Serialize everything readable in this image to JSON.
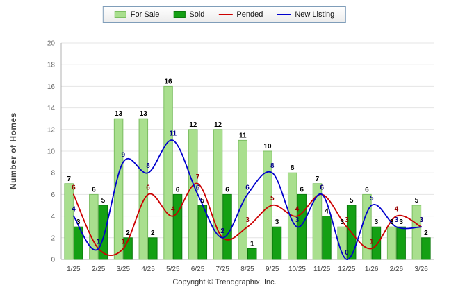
{
  "footer": {
    "copyright": "Copyright © Trendgraphix, Inc."
  },
  "chart_data": {
    "type": "bar",
    "subtype": "grouped-bars-with-overlay-lines",
    "title": "",
    "xlabel": "",
    "ylabel": "Number of Homes",
    "ylim": [
      0,
      20
    ],
    "ytick_step": 2,
    "yticks": [
      0,
      2,
      4,
      6,
      8,
      10,
      12,
      14,
      16,
      18,
      20
    ],
    "grid": true,
    "legend_position": "top-center",
    "categories": [
      "1/25",
      "2/25",
      "3/25",
      "4/25",
      "5/25",
      "6/25",
      "7/25",
      "8/25",
      "9/25",
      "10/25",
      "11/25",
      "12/25",
      "1/26",
      "2/26",
      "3/26"
    ],
    "series": [
      {
        "name": "For Sale",
        "type": "bar",
        "color": "#A9DF8E",
        "border": "#7CBE62",
        "label_color": "#000000",
        "values": [
          7,
          6,
          13,
          13,
          16,
          12,
          12,
          11,
          10,
          8,
          7,
          3,
          6,
          3,
          5
        ]
      },
      {
        "name": "Sold",
        "type": "bar",
        "color": "#14A014",
        "border": "#0C7A0C",
        "label_color": "#000000",
        "values": [
          3,
          5,
          2,
          2,
          6,
          5,
          6,
          1,
          3,
          6,
          4,
          5,
          3,
          3,
          2
        ]
      },
      {
        "name": "Pended",
        "type": "line",
        "color": "#CC0000",
        "label_color": "#990000",
        "values": [
          6,
          1,
          1,
          6,
          4,
          7,
          2,
          3,
          5,
          4,
          6,
          3,
          1,
          4,
          3
        ]
      },
      {
        "name": "New Listing",
        "type": "line",
        "color": "#0000CC",
        "label_color": "#00008B",
        "values": [
          4,
          1,
          9,
          8,
          11,
          6,
          2,
          6,
          8,
          3,
          6,
          0,
          5,
          3,
          3
        ]
      }
    ]
  }
}
